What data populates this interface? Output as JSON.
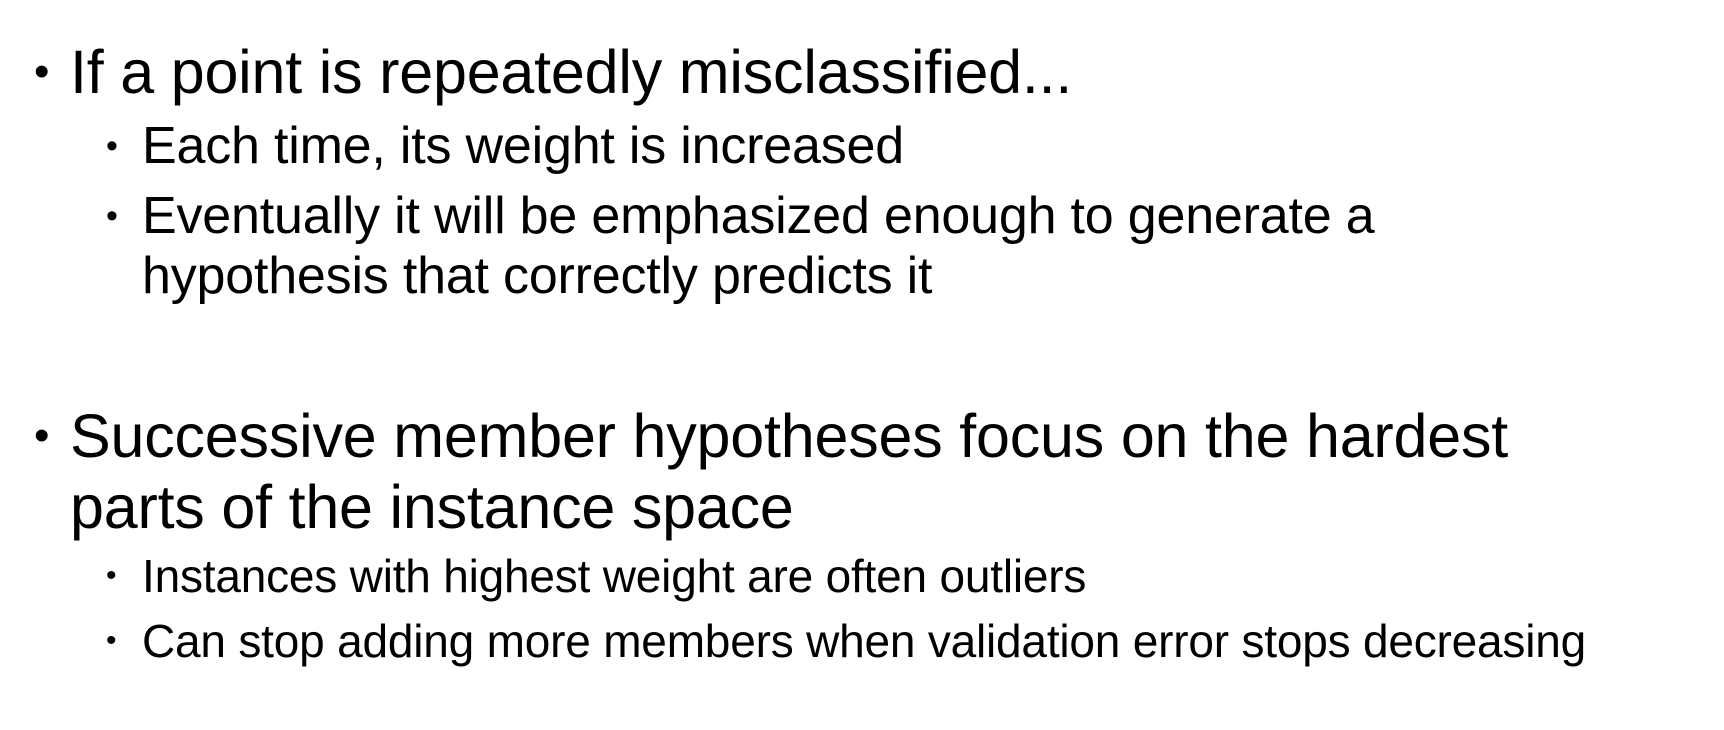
{
  "bullets": {
    "b1": {
      "symbol": "•",
      "text": "If a point is repeatedly misclassified..."
    },
    "b1_1": {
      "symbol": "•",
      "text": "Each time, its weight is increased"
    },
    "b1_2": {
      "symbol": "•",
      "line1": "Eventually it will be emphasized enough to generate a",
      "line2": "hypothesis that correctly predicts it"
    },
    "b2": {
      "symbol": "•",
      "line1": "Successive member hypotheses focus on the hardest",
      "line2": "parts of the instance space"
    },
    "b2_1": {
      "symbol": "•",
      "text": "Instances with highest weight are often outliers"
    },
    "b2_2": {
      "symbol": "•",
      "text": "Can stop adding more members when validation error stops decreasing"
    }
  }
}
